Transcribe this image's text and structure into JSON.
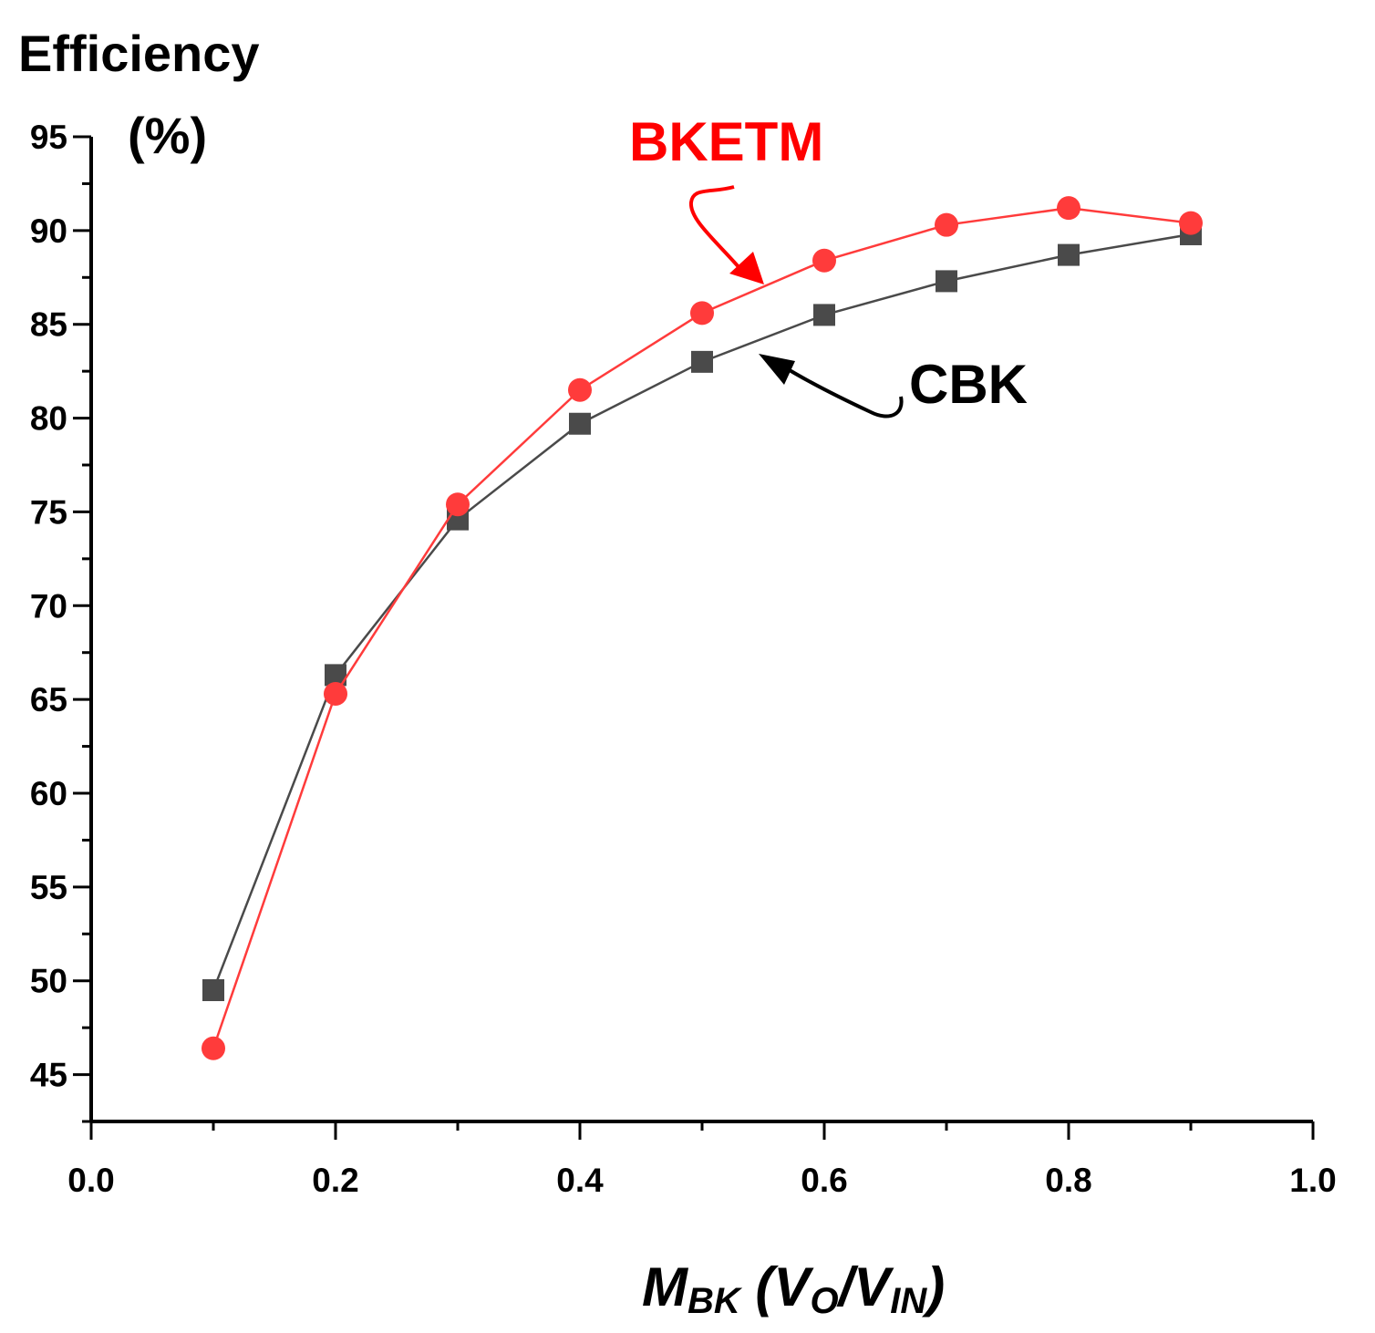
{
  "chart_data": {
    "type": "line",
    "title": "",
    "ylabel_line1": "Efficiency",
    "ylabel_line2": "(%)",
    "xlabel": {
      "main": "M",
      "main_sub": "BK",
      "open": " (",
      "num": "V",
      "num_sub": "O",
      "slash": "/",
      "den": "V",
      "den_sub": "IN",
      "close": ")"
    },
    "xlim": [
      0.0,
      1.0
    ],
    "ylim": [
      42.5,
      95
    ],
    "xticks": [
      "0.0",
      "0.2",
      "0.4",
      "0.6",
      "0.8",
      "1.0"
    ],
    "yticks": [
      "45",
      "50",
      "55",
      "60",
      "65",
      "70",
      "75",
      "80",
      "85",
      "90",
      "95"
    ],
    "grid": false,
    "x": [
      0.1,
      0.2,
      0.3,
      0.4,
      0.5,
      0.6,
      0.7,
      0.8,
      0.9
    ],
    "series": [
      {
        "name": "CBK",
        "marker": "square",
        "color": "#4a4a4a",
        "values": [
          49.5,
          66.3,
          74.6,
          79.7,
          83.0,
          85.5,
          87.3,
          88.7,
          89.8
        ]
      },
      {
        "name": "BKETM",
        "marker": "circle",
        "color": "#ff3b3b",
        "values": [
          46.4,
          65.3,
          75.4,
          81.5,
          85.6,
          88.4,
          90.3,
          91.2,
          90.4
        ]
      }
    ],
    "label_colors": {
      "BKETM": "#ff0000",
      "CBK": "#000000"
    }
  }
}
